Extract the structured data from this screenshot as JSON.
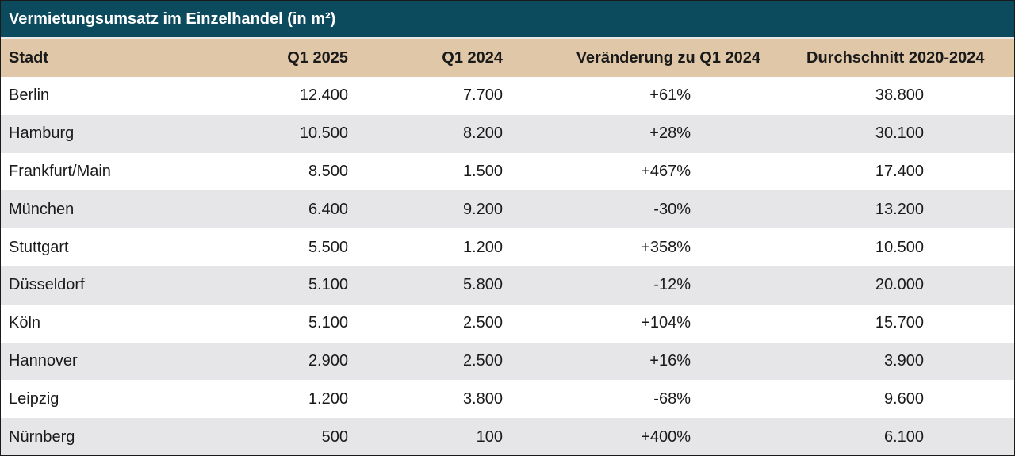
{
  "title": "Vermietungsumsatz im Einzelhandel (in m²)",
  "chart_data": {
    "type": "table",
    "title": "Vermietungsumsatz im Einzelhandel (in m²)",
    "columns": [
      "Stadt",
      "Q1 2025",
      "Q1 2024",
      "Veränderung zu Q1 2024",
      "Durchschnitt 2020-2024"
    ],
    "rows": [
      {
        "stadt": "Berlin",
        "q1_2025": "12.400",
        "q1_2024": "7.700",
        "change": "+61%",
        "avg": "38.800"
      },
      {
        "stadt": "Hamburg",
        "q1_2025": "10.500",
        "q1_2024": "8.200",
        "change": "+28%",
        "avg": "30.100"
      },
      {
        "stadt": "Frankfurt/Main",
        "q1_2025": "8.500",
        "q1_2024": "1.500",
        "change": "+467%",
        "avg": "17.400"
      },
      {
        "stadt": "München",
        "q1_2025": "6.400",
        "q1_2024": "9.200",
        "change": "-30%",
        "avg": "13.200"
      },
      {
        "stadt": "Stuttgart",
        "q1_2025": "5.500",
        "q1_2024": "1.200",
        "change": "+358%",
        "avg": "10.500"
      },
      {
        "stadt": "Düsseldorf",
        "q1_2025": "5.100",
        "q1_2024": "5.800",
        "change": "-12%",
        "avg": "20.000"
      },
      {
        "stadt": "Köln",
        "q1_2025": "5.100",
        "q1_2024": "2.500",
        "change": "+104%",
        "avg": "15.700"
      },
      {
        "stadt": "Hannover",
        "q1_2025": "2.900",
        "q1_2024": "2.500",
        "change": "+16%",
        "avg": "3.900"
      },
      {
        "stadt": "Leipzig",
        "q1_2025": "1.200",
        "q1_2024": "3.800",
        "change": "-68%",
        "avg": "9.600"
      },
      {
        "stadt": "Nürnberg",
        "q1_2025": "500",
        "q1_2024": "100",
        "change": "+400%",
        "avg": "6.100"
      }
    ]
  },
  "colors": {
    "title_bg": "#0c4a5e",
    "header_bg": "#dfc7a8",
    "row_alt_bg": "#e6e6e9"
  }
}
